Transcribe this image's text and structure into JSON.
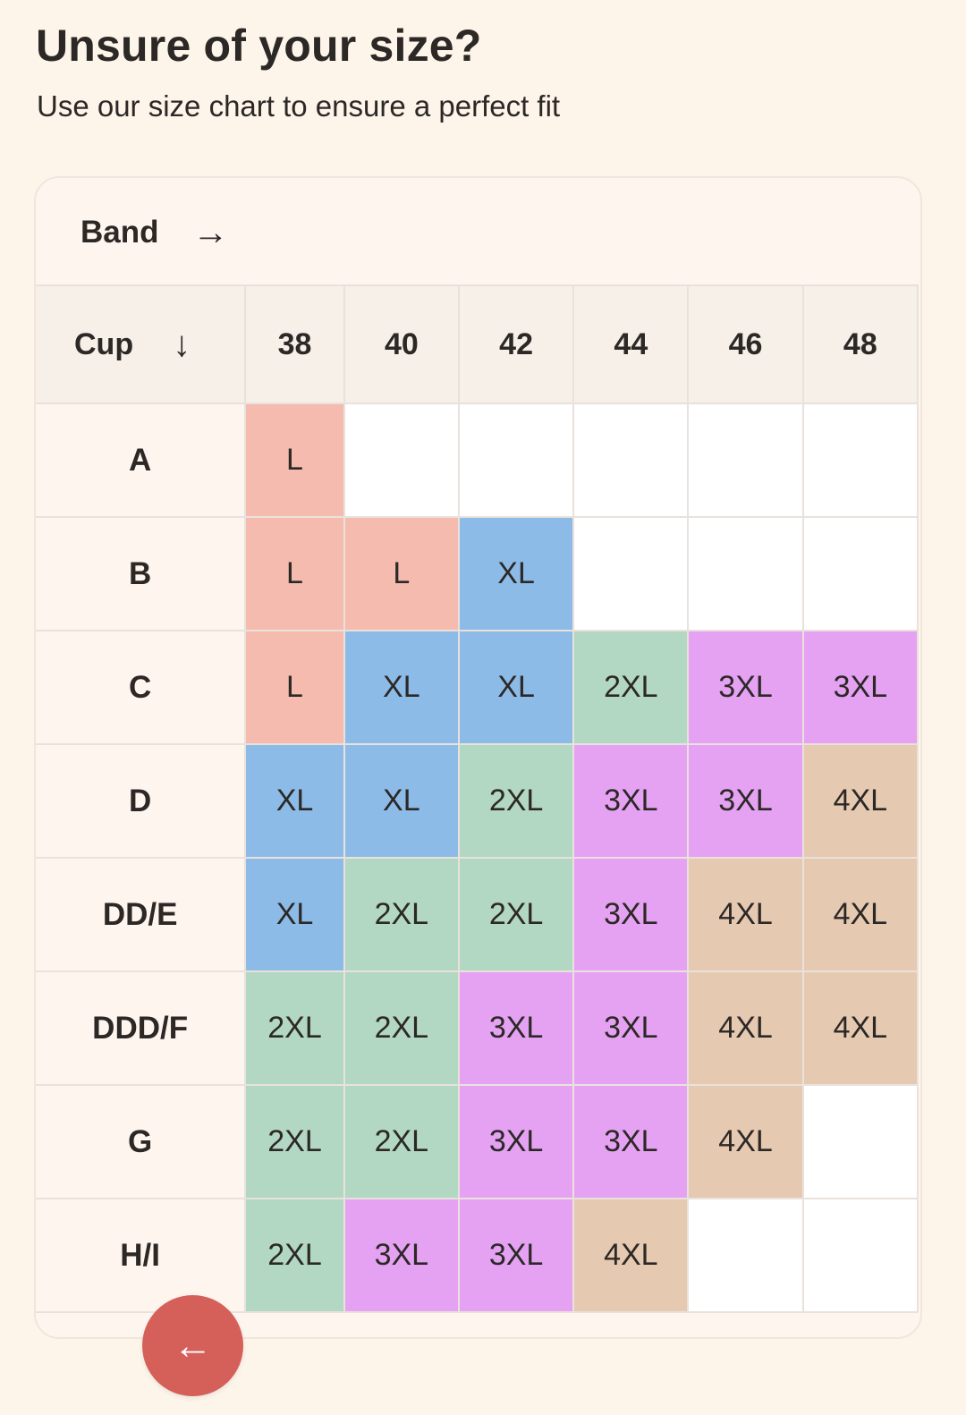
{
  "header": {
    "title": "Unsure of your size?",
    "subtitle": "Use our size chart to ensure a perfect fit"
  },
  "chart": {
    "band_label": "Band",
    "band_arrow": "→",
    "cup_label": "Cup",
    "cup_arrow": "↓",
    "bands": [
      "38",
      "40",
      "42",
      "44",
      "46",
      "48"
    ],
    "rows": [
      {
        "cup": "A",
        "sizes": [
          "L",
          "",
          "",
          "",
          "",
          ""
        ]
      },
      {
        "cup": "B",
        "sizes": [
          "L",
          "L",
          "XL",
          "",
          "",
          ""
        ]
      },
      {
        "cup": "C",
        "sizes": [
          "L",
          "XL",
          "XL",
          "2XL",
          "3XL",
          "3XL"
        ]
      },
      {
        "cup": "D",
        "sizes": [
          "XL",
          "XL",
          "2XL",
          "3XL",
          "3XL",
          "4XL"
        ]
      },
      {
        "cup": "DD/E",
        "sizes": [
          "XL",
          "2XL",
          "2XL",
          "3XL",
          "4XL",
          "4XL"
        ]
      },
      {
        "cup": "DDD/F",
        "sizes": [
          "2XL",
          "2XL",
          "3XL",
          "3XL",
          "4XL",
          "4XL"
        ]
      },
      {
        "cup": "G",
        "sizes": [
          "2XL",
          "2XL",
          "3XL",
          "3XL",
          "4XL",
          ""
        ]
      },
      {
        "cup": "H/I",
        "sizes": [
          "2XL",
          "3XL",
          "3XL",
          "4XL",
          "",
          ""
        ]
      }
    ],
    "size_colors": {
      "L": "#f4bbae",
      "XL": "#8dbbe8",
      "2XL": "#b2d7c3",
      "3XL": "#e5a2f3",
      "4XL": "#e6c9b1",
      "empty": "#ffffff"
    }
  },
  "back_button": {
    "icon": "arrow-left-icon",
    "glyph": "←",
    "color": "#d5605a"
  }
}
